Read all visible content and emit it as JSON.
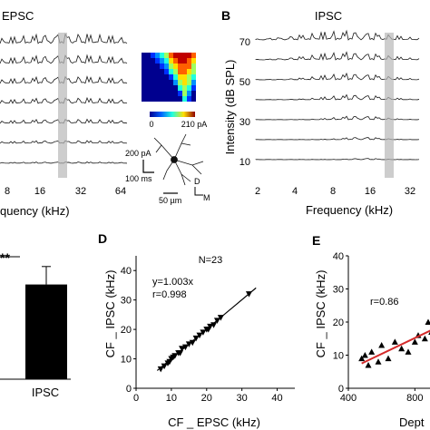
{
  "panels": {
    "A": {
      "title": "EPSC",
      "x_ticks": [
        "8",
        "16",
        "32",
        "64"
      ],
      "x_label": "quency (kHz)",
      "heatmap_scale": {
        "min": "0",
        "max": "210 pA"
      },
      "scale_bar_v": "200 pA",
      "scale_bar_h": "100 ms",
      "cell_scale": "50 µm",
      "axis_d": "D",
      "axis_m": "M"
    },
    "B": {
      "letter": "B",
      "title": "IPSC",
      "y_label": "Intensity (dB SPL)",
      "y_ticks": [
        "70",
        "50",
        "30",
        "10"
      ],
      "x_ticks": [
        "2",
        "4",
        "8",
        "16",
        "32"
      ],
      "x_label": "Frequency (kHz)"
    },
    "C": {
      "significance": "**",
      "category": "IPSC"
    },
    "D": {
      "letter": "D",
      "n_label": "N=23",
      "fit_eq": "y=1.003x",
      "fit_r": "r=0.998",
      "x_label": "CF _ EPSC (kHz)",
      "y_label": "CF _ IPSC (kHz)",
      "x_ticks": [
        "0",
        "10",
        "20",
        "30",
        "40"
      ],
      "y_ticks": [
        "0",
        "10",
        "20",
        "30",
        "40"
      ]
    },
    "E": {
      "letter": "E",
      "r_label": "r=0.86",
      "y_label": "CF _ IPSC (kHz)",
      "x_label": "Dept",
      "x_ticks": [
        "400",
        "800"
      ],
      "y_ticks": [
        "0",
        "10",
        "20",
        "30",
        "40"
      ]
    }
  },
  "chart_data": [
    {
      "type": "bar",
      "categories": [
        "IPSC"
      ],
      "values": [
        0.29
      ],
      "error": [
        0.055
      ],
      "significance": "**"
    },
    {
      "type": "scatter",
      "xlabel": "CF _ EPSC (kHz)",
      "ylabel": "CF _ IPSC (kHz)",
      "xlim": [
        0,
        45
      ],
      "ylim": [
        0,
        45
      ],
      "points": [
        [
          7,
          6.5
        ],
        [
          8,
          7.5
        ],
        [
          9,
          8.5
        ],
        [
          9.5,
          9
        ],
        [
          10,
          10
        ],
        [
          10.5,
          10.5
        ],
        [
          11,
          11
        ],
        [
          12,
          12
        ],
        [
          12.5,
          12
        ],
        [
          13,
          13.5
        ],
        [
          14,
          14
        ],
        [
          15,
          15
        ],
        [
          16,
          15.5
        ],
        [
          17,
          17
        ],
        [
          18,
          18
        ],
        [
          19,
          19
        ],
        [
          20,
          20
        ],
        [
          20.5,
          20
        ],
        [
          21,
          21
        ],
        [
          22,
          21.5
        ],
        [
          23,
          23
        ],
        [
          24,
          24
        ],
        [
          32,
          32
        ]
      ],
      "fit": {
        "slope": 1.003,
        "x_range": [
          6,
          34
        ]
      }
    },
    {
      "type": "scatter",
      "xlabel": "Dept",
      "ylabel": "CF _ IPSC (kHz)",
      "xlim": [
        400,
        1000
      ],
      "ylim": [
        0,
        40
      ],
      "points": [
        [
          480,
          9
        ],
        [
          500,
          10
        ],
        [
          520,
          7
        ],
        [
          540,
          11
        ],
        [
          580,
          8
        ],
        [
          600,
          13
        ],
        [
          640,
          9
        ],
        [
          680,
          14
        ],
        [
          720,
          12
        ],
        [
          760,
          11
        ],
        [
          800,
          14
        ],
        [
          820,
          16
        ],
        [
          860,
          15
        ],
        [
          880,
          20
        ],
        [
          900,
          17
        ],
        [
          920,
          19
        ],
        [
          950,
          18
        ],
        [
          970,
          21
        ]
      ],
      "fit": {
        "x_range": [
          480,
          980
        ],
        "y_range": [
          7.5,
          19.5
        ]
      }
    }
  ]
}
